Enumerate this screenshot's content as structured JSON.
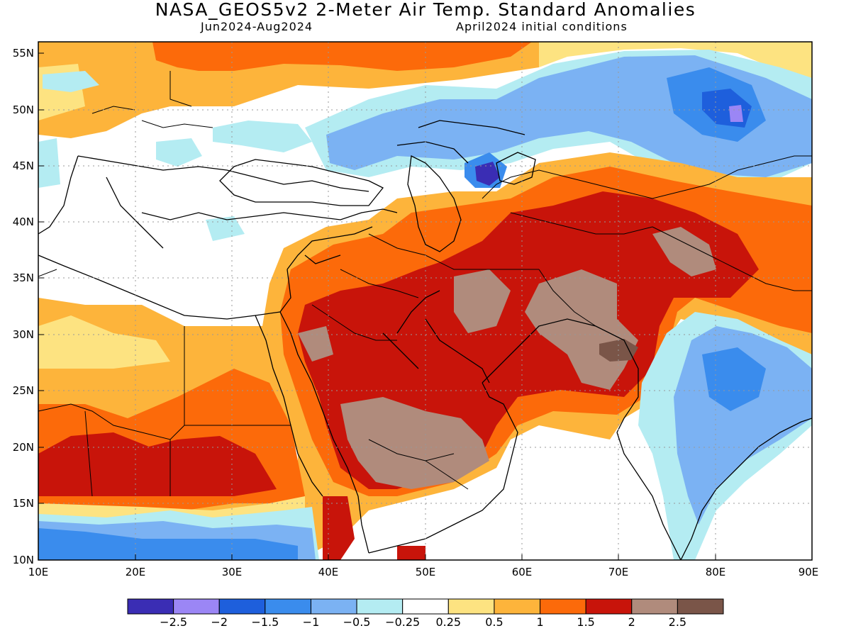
{
  "title": "NASA_GEOS5v2 2-Meter Air Temp. Standard Anomalies",
  "subtitle_left": "Jun2024-Aug2024",
  "subtitle_right": "April2024 initial conditions",
  "axes": {
    "lat_labels": [
      "55N",
      "50N",
      "45N",
      "40N",
      "35N",
      "30N",
      "25N",
      "20N",
      "15N",
      "10N"
    ],
    "lon_labels": [
      "10E",
      "20E",
      "30E",
      "40E",
      "50E",
      "60E",
      "70E",
      "80E",
      "90E"
    ]
  },
  "colorbar": {
    "colors": [
      "#3a2db4",
      "#9b86f5",
      "#1e5fdc",
      "#3a8ced",
      "#7bb2f3",
      "#b4ecf2",
      "#ffffff",
      "#fde381",
      "#fdb43b",
      "#fc6a0a",
      "#c8140a",
      "#b08b7c",
      "#7a5548"
    ],
    "labels": [
      "-2.5",
      "-2",
      "-1.5",
      "-1",
      "-0.5",
      "-0.25",
      "0.25",
      "0.5",
      "1",
      "1.5",
      "2",
      "2.5"
    ]
  },
  "palette": {
    "neg3": "#3a2db4",
    "neg25": "#9b86f5",
    "neg2": "#1e5fdc",
    "neg15": "#3a8ced",
    "neg1": "#7bb2f3",
    "neg05": "#b4ecf2",
    "zero": "#ffffff",
    "pos025": "#fde381",
    "pos05": "#fdb43b",
    "pos1": "#fc6a0a",
    "pos15": "#c8140a",
    "pos2": "#b08b7c",
    "pos25": "#7a5548"
  }
}
